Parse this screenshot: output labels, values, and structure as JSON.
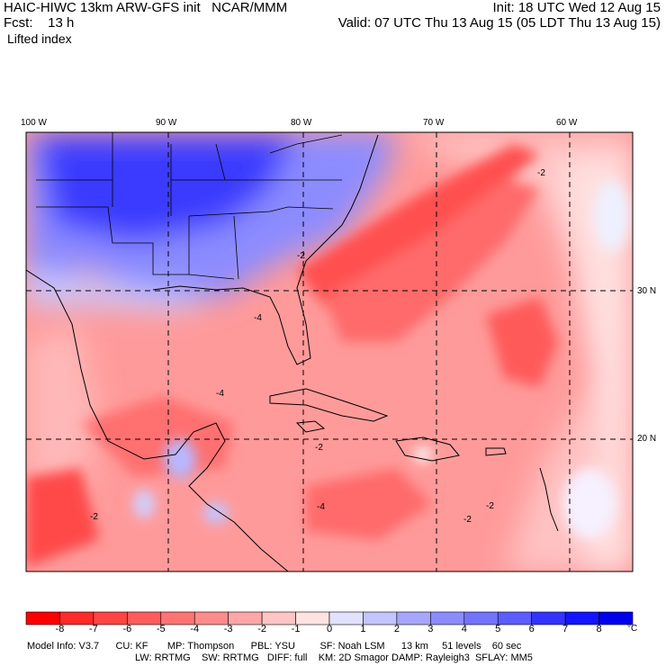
{
  "header": {
    "model_line": "HAIC-HIWC 13km ARW-GFS init   NCAR/MMM",
    "fcst_line": "Fcst:    13 h",
    "field_name": "Lifted index",
    "init_line": "Init: 18 UTC Wed 12 Aug 15",
    "valid_line": "Valid: 07 UTC Thu 13 Aug 15 (05 LDT Thu 13 Aug 15)"
  },
  "map": {
    "lon_labels": [
      "100 W",
      "90 W",
      "80 W",
      "70 W",
      "60 W"
    ],
    "lat_labels": [
      "30 N",
      "20 N"
    ],
    "contour_labels": [
      "-2",
      "-2",
      "-4",
      "-2",
      "-4",
      "-2",
      "-2",
      "-4",
      "-2"
    ]
  },
  "colorbar": {
    "labels": [
      "-8",
      "-7",
      "-6",
      "-5",
      "-4",
      "-3",
      "-2",
      "-1",
      "0",
      "1",
      "2",
      "3",
      "4",
      "5",
      "6",
      "7",
      "8"
    ],
    "unit": "°C",
    "colors": [
      "#ff0000",
      "#ff2a2a",
      "#ff4444",
      "#ff5c5c",
      "#ff7373",
      "#ff8c8c",
      "#ffa6a6",
      "#ffc4c4",
      "#ffe2e2",
      "#e2e2ff",
      "#c4c4ff",
      "#a6a6ff",
      "#8c8cff",
      "#7373ff",
      "#5c5cff",
      "#3333ff",
      "#1414ff",
      "#0000ee"
    ]
  },
  "footer": {
    "line1": "Model Info: V3.7      CU: KF       MP: Thompson      PBL: YSU         SF: Noah LSM      13 km     51 levels    60 sec",
    "line2": "LW: RRTMG    SW: RRTMG   DIFF: full    KM: 2D Smagor DAMP: Rayleigh3  SFLAY: MM5"
  }
}
